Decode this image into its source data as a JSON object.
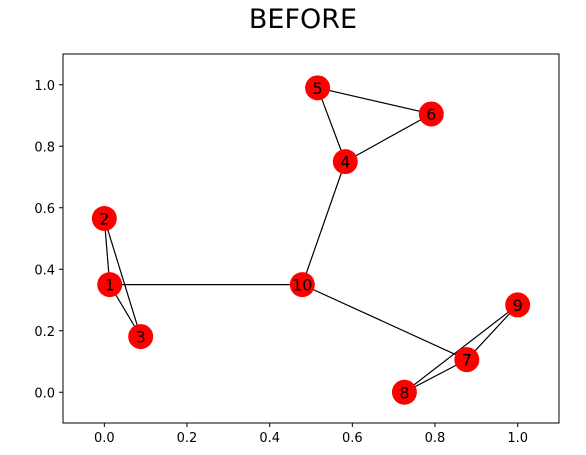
{
  "chart_data": {
    "type": "graph",
    "title": "BEFORE",
    "xlim": [
      -0.1,
      1.1
    ],
    "ylim": [
      -0.1,
      1.1
    ],
    "xticks": [
      0.0,
      0.2,
      0.4,
      0.6,
      0.8,
      1.0
    ],
    "yticks": [
      0.0,
      0.2,
      0.4,
      0.6,
      0.8,
      1.0
    ],
    "xtick_labels": [
      "0.0",
      "0.2",
      "0.4",
      "0.6",
      "0.8",
      "1.0"
    ],
    "ytick_labels": [
      "0.0",
      "0.2",
      "0.4",
      "0.6",
      "0.8",
      "1.0"
    ],
    "node_color": "#ff0000",
    "edge_color": "#000000",
    "nodes": [
      {
        "id": "1",
        "x": 0.013,
        "y": 0.35
      },
      {
        "id": "2",
        "x": 0.0,
        "y": 0.565
      },
      {
        "id": "3",
        "x": 0.088,
        "y": 0.181
      },
      {
        "id": "4",
        "x": 0.583,
        "y": 0.75
      },
      {
        "id": "5",
        "x": 0.516,
        "y": 0.99
      },
      {
        "id": "6",
        "x": 0.791,
        "y": 0.905
      },
      {
        "id": "7",
        "x": 0.877,
        "y": 0.106
      },
      {
        "id": "8",
        "x": 0.726,
        "y": 0.0
      },
      {
        "id": "9",
        "x": 1.0,
        "y": 0.284
      },
      {
        "id": "10",
        "x": 0.479,
        "y": 0.35
      }
    ],
    "edges": [
      [
        "1",
        "2"
      ],
      [
        "1",
        "3"
      ],
      [
        "2",
        "3"
      ],
      [
        "1",
        "10"
      ],
      [
        "10",
        "4"
      ],
      [
        "4",
        "5"
      ],
      [
        "4",
        "6"
      ],
      [
        "5",
        "6"
      ],
      [
        "10",
        "7"
      ],
      [
        "7",
        "8"
      ],
      [
        "7",
        "9"
      ],
      [
        "8",
        "9"
      ]
    ]
  }
}
